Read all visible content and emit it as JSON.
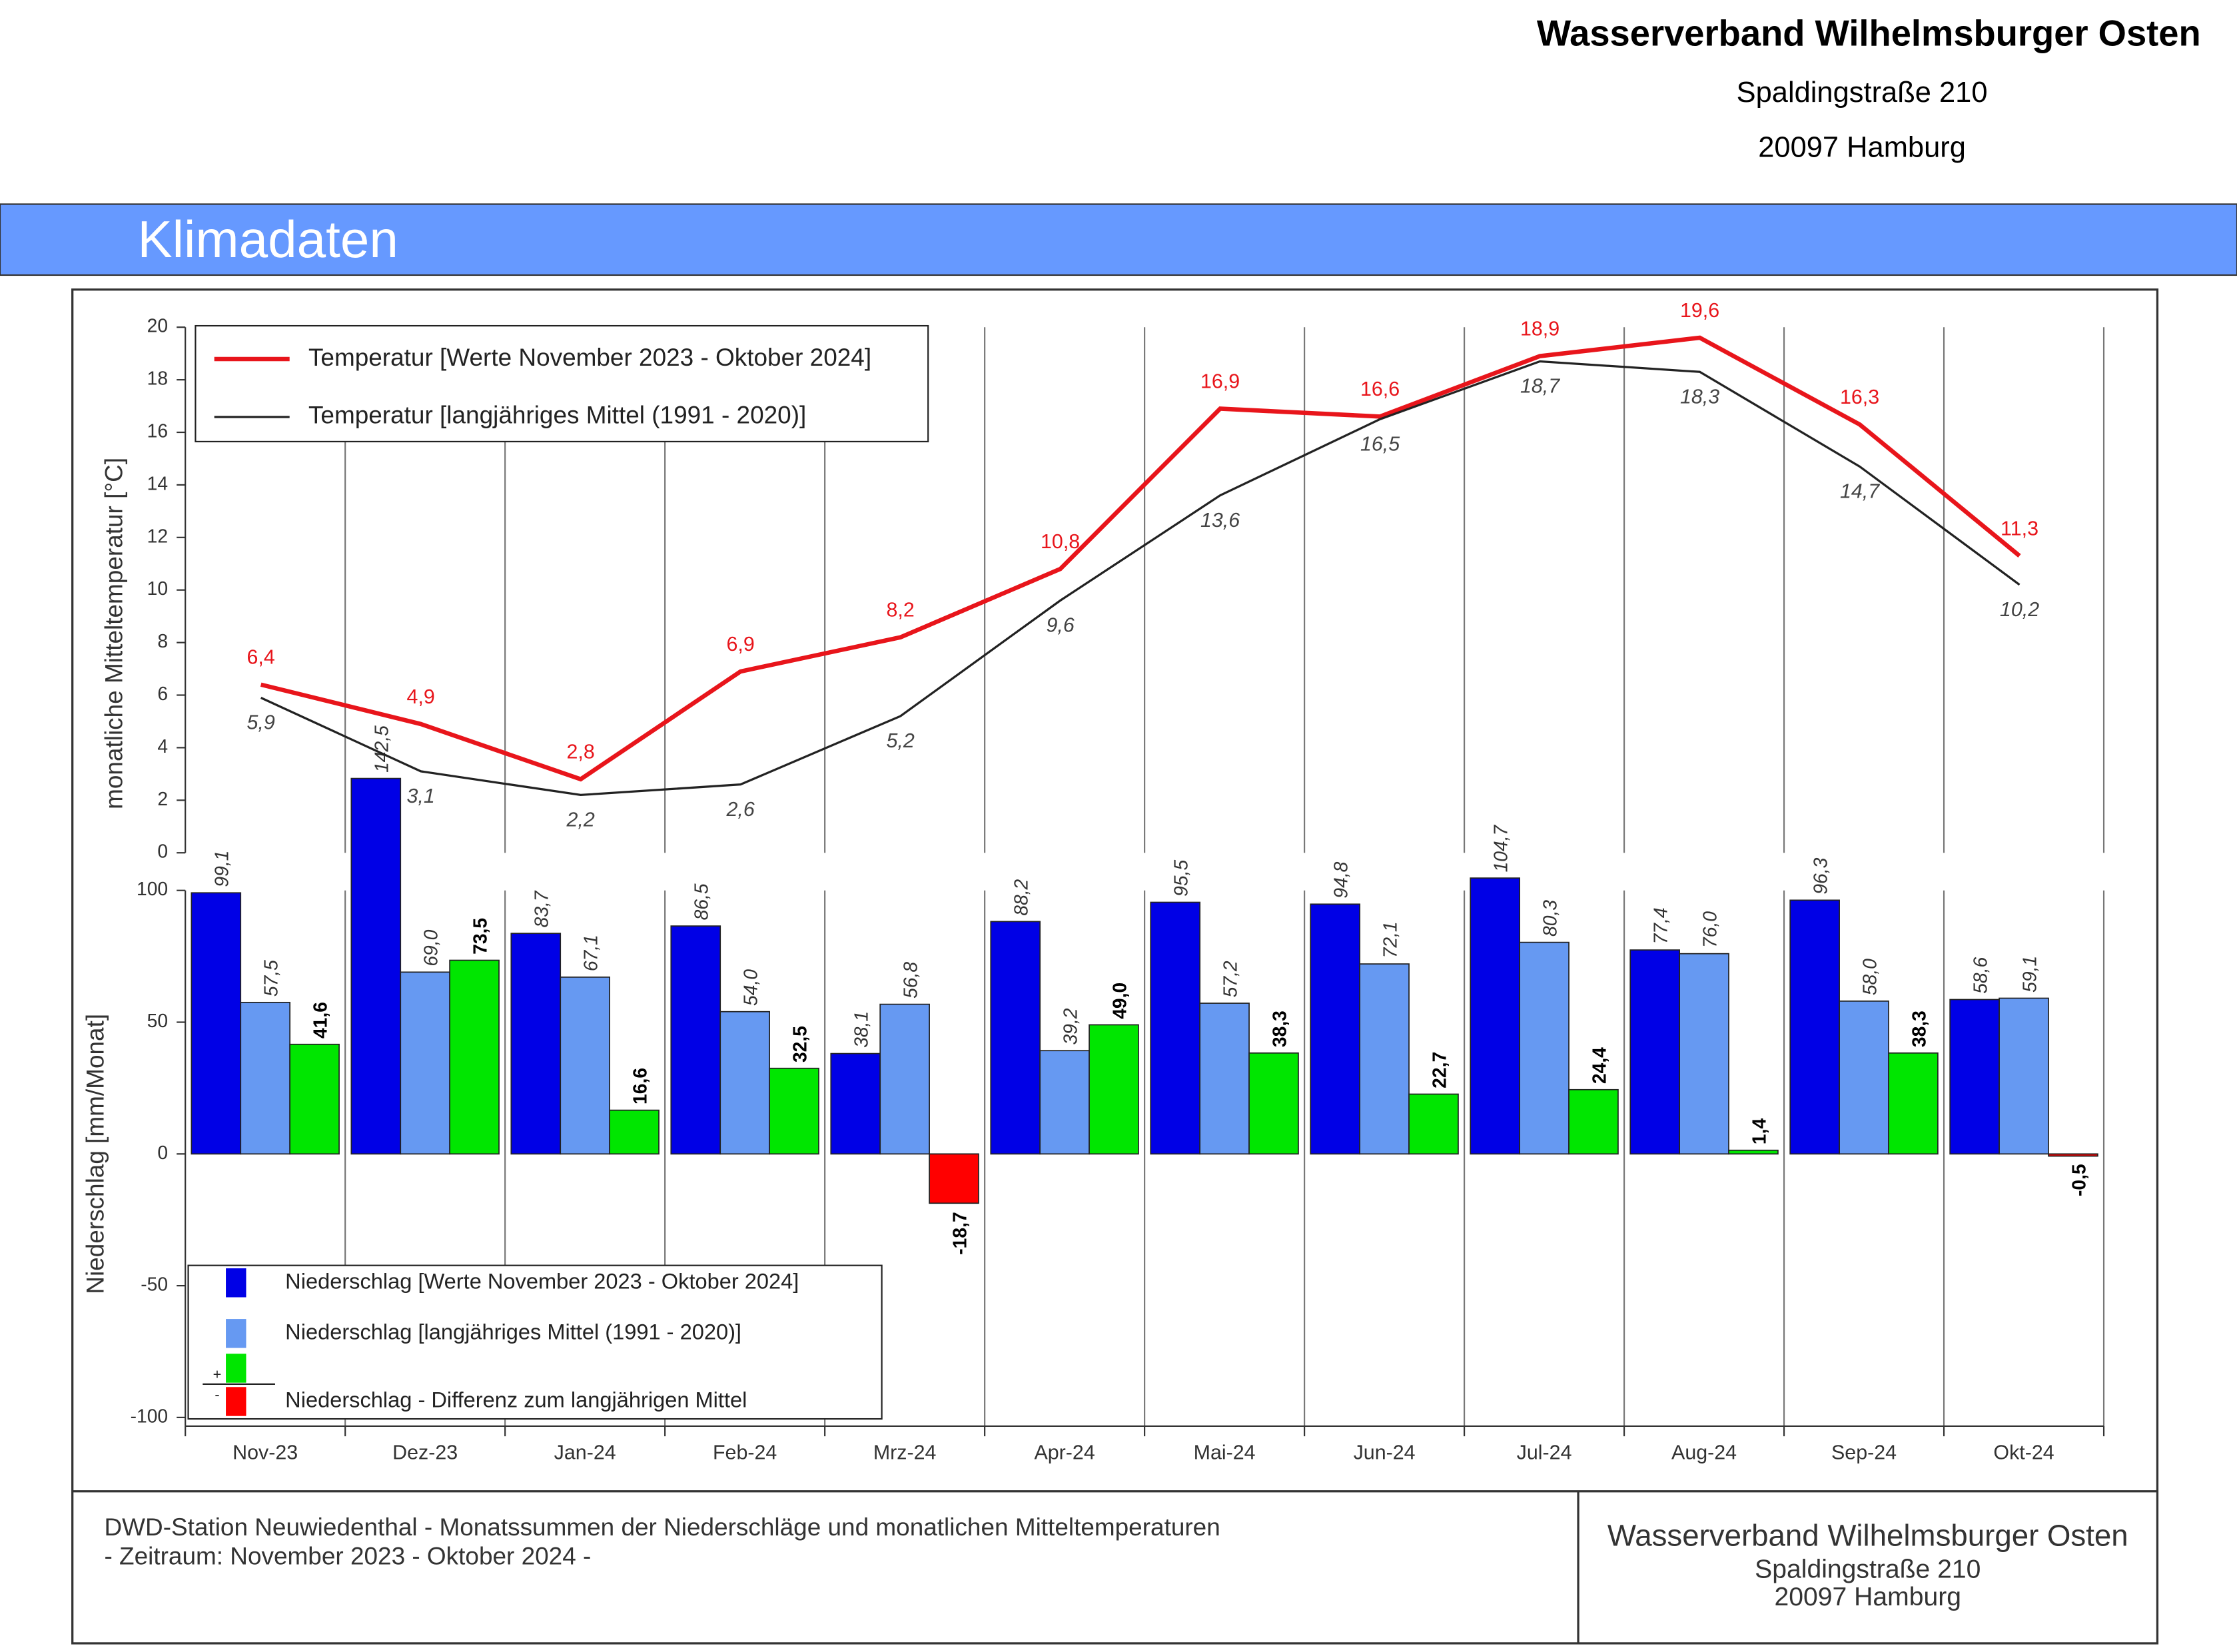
{
  "header": {
    "org": "Wasserverband Wilhelmsburger Osten",
    "street": "Spaldingstraße 210",
    "city": "20097 Hamburg"
  },
  "banner": "Klimadaten",
  "chart_data": {
    "type": "bar_line",
    "categories": [
      "Nov-23",
      "Dez-23",
      "Jan-24",
      "Feb-24",
      "Mrz-24",
      "Apr-24",
      "Mai-24",
      "Jun-24",
      "Jul-24",
      "Aug-24",
      "Sep-24",
      "Okt-24"
    ],
    "temperature": {
      "type": "line",
      "ylabel": "monatliche Mitteltemperatur [°C]",
      "ylim": [
        0,
        20
      ],
      "yticks": [
        0,
        2,
        4,
        6,
        8,
        10,
        12,
        14,
        16,
        18,
        20
      ],
      "series": [
        {
          "name": "Temperatur [Werte November 2023 - Oktober 2024]",
          "color": "#e8151b",
          "values": [
            6.4,
            4.9,
            2.8,
            6.9,
            8.2,
            10.8,
            16.9,
            16.6,
            18.9,
            19.6,
            16.3,
            11.3
          ],
          "value_labels": [
            "6,4",
            "4,9",
            "2,8",
            "6,9",
            "8,2",
            "10,8",
            "16,9",
            "16,6",
            "18,9",
            "19,6",
            "16,3",
            "11,3"
          ]
        },
        {
          "name": "Temperatur [langjähriges Mittel (1991 - 2020)]",
          "color": "#222222",
          "values": [
            5.9,
            3.1,
            2.2,
            2.6,
            5.2,
            9.6,
            13.6,
            16.5,
            18.7,
            18.3,
            14.7,
            10.2
          ],
          "value_labels": [
            "5,9",
            "3,1",
            "2,2",
            "2,6",
            "5,2",
            "9,6",
            "13,6",
            "16,5",
            "18,7",
            "18,3",
            "14,7",
            "10,2"
          ]
        }
      ]
    },
    "precipitation": {
      "type": "bar",
      "ylabel": "Niederschlag [mm/Monat]",
      "ylim": [
        -100,
        100
      ],
      "yticks": [
        -100,
        -50,
        0,
        50,
        100
      ],
      "series": [
        {
          "name": "Niederschlag [Werte November 2023 - Oktober 2024]",
          "color": "#0000e6",
          "values": [
            99.1,
            142.5,
            83.7,
            86.5,
            38.1,
            88.2,
            95.5,
            94.8,
            104.7,
            77.4,
            96.3,
            58.6
          ],
          "value_labels": [
            "99,1",
            "142,5",
            "83,7",
            "86,5",
            "38,1",
            "88,2",
            "95,5",
            "94,8",
            "104,7",
            "77,4",
            "96,3",
            "58,6"
          ]
        },
        {
          "name": "Niederschlag [langjähriges Mittel (1991 - 2020)]",
          "color": "#6699f2",
          "values": [
            57.5,
            69.0,
            67.1,
            54.0,
            56.8,
            39.2,
            57.2,
            72.1,
            80.3,
            76.0,
            58.0,
            59.1
          ],
          "value_labels": [
            "57,5",
            "69,0",
            "67,1",
            "54,0",
            "56,8",
            "39,2",
            "57,2",
            "72,1",
            "80,3",
            "76,0",
            "58,0",
            "59,1"
          ]
        },
        {
          "name": "Niederschlag - Differenz zum langjährigen Mittel",
          "color": "#00e600",
          "negative_color": "#ff0000",
          "plus_label": "+",
          "minus_label": "-",
          "values": [
            41.6,
            73.5,
            16.6,
            32.5,
            -18.7,
            49.0,
            38.3,
            22.7,
            24.4,
            1.4,
            38.3,
            -0.5
          ],
          "value_labels": [
            "41,6",
            "73,5",
            "16,6",
            "32,5",
            "-18,7",
            "49,0",
            "38,3",
            "22,7",
            "24,4",
            "1,4",
            "38,3",
            "-0,5"
          ]
        }
      ]
    }
  },
  "footer": {
    "line1": "DWD-Station Neuwiedenthal - Monatssummen der Niederschläge und monatlichen Mitteltemperaturen",
    "line2": "- Zeitraum: November 2023 - Oktober 2024 -",
    "org": "Wasserverband Wilhelmsburger Osten",
    "street": "Spaldingstraße 210",
    "city": "20097 Hamburg"
  }
}
